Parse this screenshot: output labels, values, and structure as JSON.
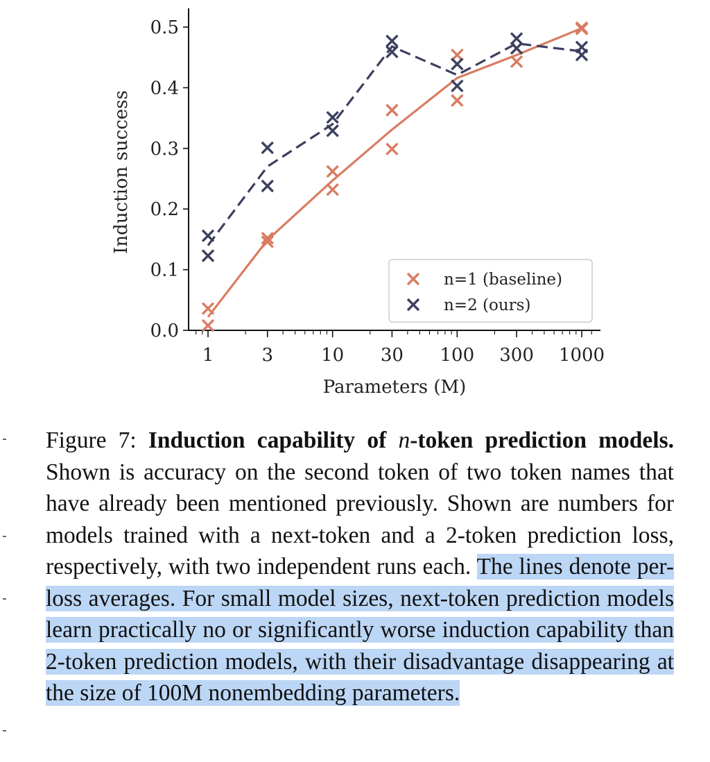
{
  "chart_data": {
    "type": "scatter",
    "xscale": "log",
    "xlabel": "Parameters (M)",
    "ylabel": "Induction success",
    "xticks": [
      1,
      3,
      10,
      30,
      100,
      300,
      1000
    ],
    "xtick_labels": [
      "1",
      "3",
      "10",
      "30",
      "100",
      "300",
      "1000"
    ],
    "yticks": [
      0.0,
      0.1,
      0.2,
      0.3,
      0.4,
      0.5
    ],
    "ytick_labels": [
      "0.0",
      "0.1",
      "0.2",
      "0.3",
      "0.4",
      "0.5"
    ],
    "xlim": [
      0.75,
      1400
    ],
    "ylim": [
      0.0,
      0.53
    ],
    "grid": false,
    "legend_position": "bottom-right",
    "series": [
      {
        "name": "n=1 (baseline)",
        "color": "#d97c62",
        "line_style": "solid",
        "x": [
          1,
          3,
          10,
          30,
          100,
          300,
          1000
        ],
        "runs": [
          [
            0.008,
            0.152,
            0.262,
            0.363,
            0.454,
            0.465,
            0.497
          ],
          [
            0.036,
            0.146,
            0.232,
            0.299,
            0.379,
            0.443,
            0.499
          ]
        ],
        "mean": [
          0.022,
          0.149,
          0.247,
          0.331,
          0.416,
          0.454,
          0.498
        ]
      },
      {
        "name": "n=2 (ours)",
        "color": "#3c3f5e",
        "line_style": "dashed",
        "x": [
          1,
          3,
          10,
          30,
          100,
          300,
          1000
        ],
        "runs": [
          [
            0.156,
            0.301,
            0.351,
            0.477,
            0.439,
            0.481,
            0.467
          ],
          [
            0.123,
            0.238,
            0.329,
            0.459,
            0.403,
            0.465,
            0.454
          ]
        ],
        "mean": [
          0.14,
          0.27,
          0.34,
          0.468,
          0.421,
          0.473,
          0.46
        ]
      }
    ]
  },
  "caption": {
    "label": "Figure 7:",
    "title_pre": "Induction capability of",
    "title_math": "n",
    "title_post": "-token prediction models.",
    "text_plain": "Shown is accuracy on the second token of two token names that have already been mentioned previously. Shown are numbers for models trained with a next-token and a 2-token prediction loss, respectively, with two independent runs each.",
    "text_highlighted": "The lines denote per-loss averages. For small model sizes, next-token prediction models learn practically no or significantly worse induction capability than 2-token prediction models, with their disadvantage disappearing at the size of 100M nonembedding parameters."
  }
}
